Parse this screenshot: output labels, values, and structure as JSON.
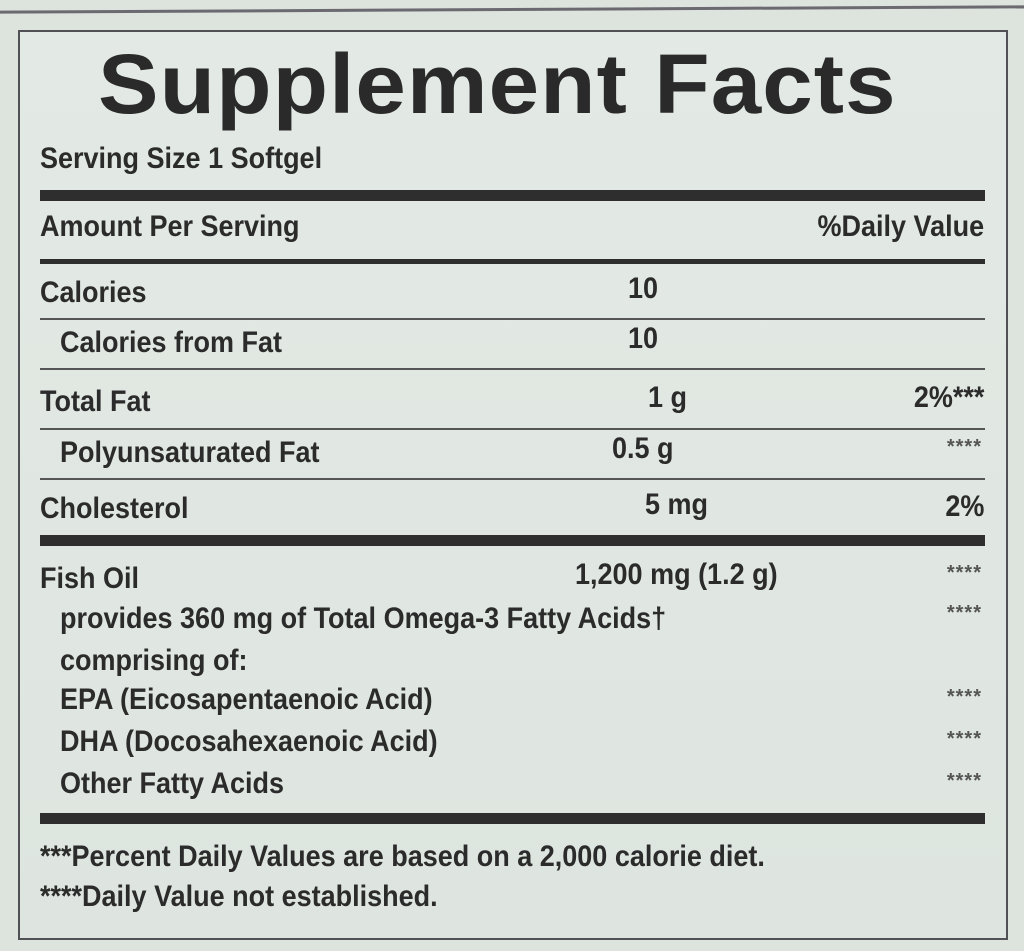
{
  "title": "Supplement Facts",
  "serving_size": "Serving Size 1 Softgel",
  "header": {
    "amount": "Amount Per Serving",
    "dv": "%Daily Value"
  },
  "rows": [
    {
      "name": "Calories",
      "amount": "10",
      "dv": ""
    },
    {
      "name": "Calories from Fat",
      "amount": "10",
      "dv": ""
    },
    {
      "name": "Total Fat",
      "amount": "1 g",
      "dv": "2%***"
    },
    {
      "name": "Polyunsaturated Fat",
      "amount": "0.5 g",
      "dv": "****"
    },
    {
      "name": "Cholesterol",
      "amount": "5 mg",
      "dv": "2%"
    }
  ],
  "fish_oil": {
    "name": "Fish Oil",
    "amount": "1,200 mg (1.2 g)",
    "dv": "****"
  },
  "omega": {
    "text": "provides 360 mg of Total Omega-3 Fatty Acids†",
    "dv": "****"
  },
  "comprising": "comprising of:",
  "components": [
    {
      "name": "EPA (Eicosapentaenoic Acid)",
      "dv": "****"
    },
    {
      "name": "DHA (Docosahexaenoic Acid)",
      "dv": "****"
    },
    {
      "name": "Other Fatty Acids",
      "dv": "****"
    }
  ],
  "footnotes": [
    "***Percent Daily Values are based on a 2,000 calorie diet.",
    "****Daily Value not established."
  ]
}
